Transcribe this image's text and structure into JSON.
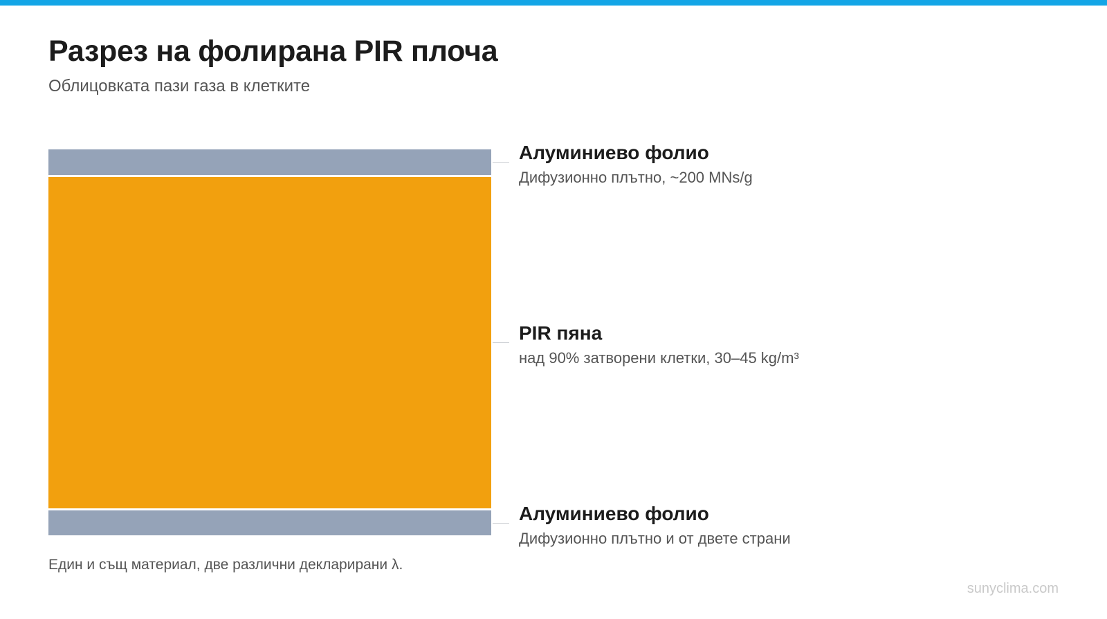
{
  "colors": {
    "accent_bar": "#13a5e6",
    "foil": "#95a3b8",
    "foam": "#f2a00e"
  },
  "header": {
    "title": "Разрез на фолирана PIR плоча",
    "subtitle": "Облицовката пази газа в клетките"
  },
  "layers": [
    {
      "title": "Алуминиево фолио",
      "description": "Дифузионно плътно, ~200 MNs/g"
    },
    {
      "title": "PIR пяна",
      "description": "над 90% затворени клетки, 30–45 kg/m³"
    },
    {
      "title": "Алуминиево фолио",
      "description": "Дифузионно плътно и от двете страни"
    }
  ],
  "footnote": "Един и същ материал, две различни декларирани λ.",
  "watermark": "sunyclima.com"
}
